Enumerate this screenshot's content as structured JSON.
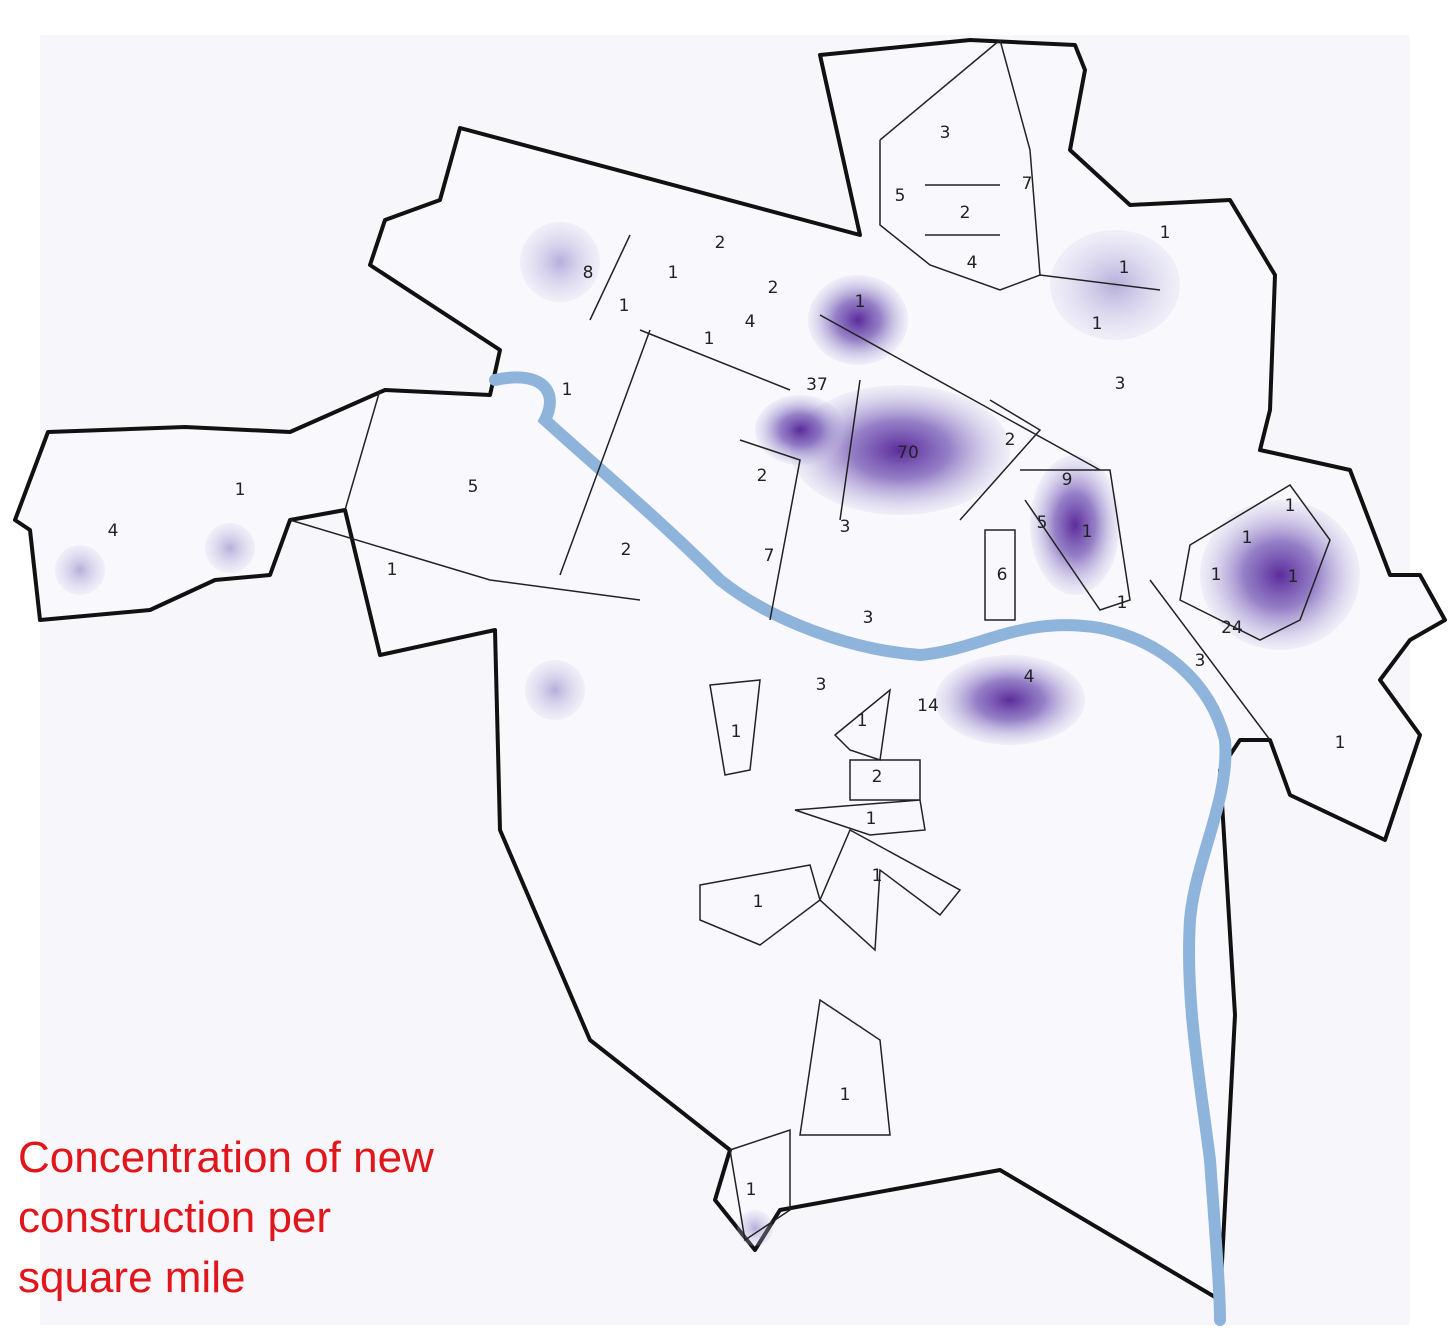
{
  "map": {
    "labels": [
      3,
      7,
      5,
      2,
      4,
      1,
      1,
      1,
      3,
      2,
      8,
      1,
      2,
      1,
      4,
      1,
      1,
      37,
      1,
      70,
      2,
      1,
      5,
      4,
      2,
      9,
      5,
      1,
      3,
      2,
      7,
      1,
      6,
      1,
      1,
      1,
      1,
      1,
      24,
      3,
      3,
      3,
      4,
      14,
      1,
      1,
      1,
      2,
      1,
      1,
      1,
      1,
      1
    ],
    "caption": [
      "Concentration of new",
      "construction per",
      "square mile"
    ]
  }
}
